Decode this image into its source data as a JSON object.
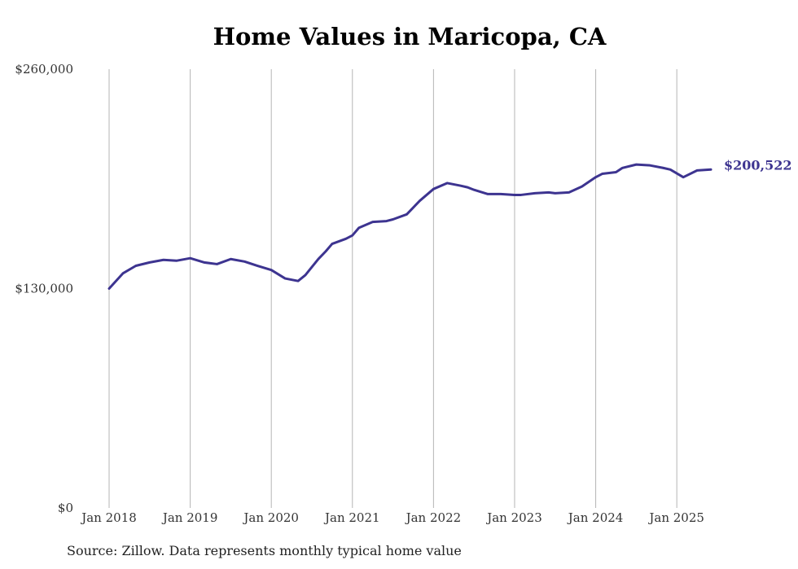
{
  "chart_data": {
    "type": "line",
    "title": "Home Values in Maricopa, CA",
    "source": "Source: Zillow. Data represents monthly typical home value",
    "y_ticks": [
      "$260,000",
      "$130,000",
      "$0"
    ],
    "y_tick_values": [
      260000,
      130000,
      0
    ],
    "ylim": [
      0,
      260000
    ],
    "x_ticks": [
      "Jan 2018",
      "Jan 2019",
      "Jan 2020",
      "Jan 2021",
      "Jan 2022",
      "Jan 2023",
      "Jan 2024",
      "Jan 2025"
    ],
    "x_tick_values": [
      2018,
      2019,
      2020,
      2021,
      2022,
      2023,
      2024,
      2025
    ],
    "xlim": [
      2018,
      2025.42
    ],
    "grid": "vertical",
    "line_color": "#3d3490",
    "end_label": "$200,522",
    "series": [
      {
        "x": [
          2018.0,
          2018.17,
          2018.33,
          2018.5,
          2018.67,
          2018.83,
          2019.0,
          2019.17,
          2019.33,
          2019.5,
          2019.67,
          2019.83,
          2020.0,
          2020.17,
          2020.33,
          2020.42,
          2020.58,
          2020.67,
          2020.75,
          2020.92,
          2021.0,
          2021.08,
          2021.25,
          2021.42,
          2021.5,
          2021.67,
          2021.83,
          2022.0,
          2022.17,
          2022.33,
          2022.42,
          2022.5,
          2022.67,
          2022.83,
          2023.0,
          2023.08,
          2023.25,
          2023.42,
          2023.5,
          2023.67,
          2023.83,
          2024.0,
          2024.08,
          2024.25,
          2024.33,
          2024.5,
          2024.67,
          2024.83,
          2024.92,
          2025.08,
          2025.25,
          2025.42
        ],
        "values": [
          130000,
          139000,
          143500,
          145500,
          147000,
          146500,
          148000,
          145500,
          144500,
          147500,
          146000,
          143500,
          141000,
          136000,
          134500,
          138000,
          147500,
          152000,
          156500,
          159500,
          161500,
          166000,
          169500,
          170000,
          171000,
          174000,
          182000,
          189000,
          192500,
          191000,
          190000,
          188500,
          186000,
          186000,
          185500,
          185500,
          186500,
          187000,
          186500,
          187000,
          190500,
          196000,
          198000,
          199000,
          201500,
          203500,
          203000,
          201500,
          200522,
          196000,
          200000,
          200522
        ]
      }
    ]
  }
}
